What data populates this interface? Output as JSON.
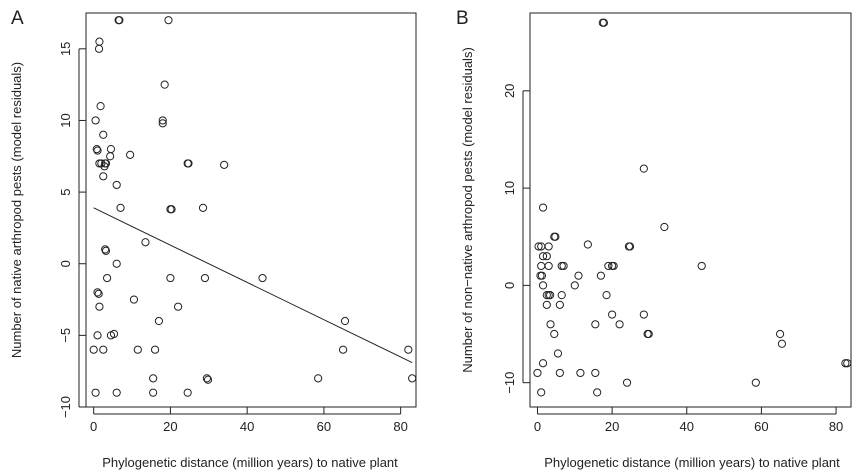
{
  "chart_data": [
    {
      "type": "scatter",
      "panel_label": "A",
      "xlabel": "Phylogenetic distance (million years) to native plant",
      "ylabel": "Number of native arthropod pests (model residuals)",
      "xlim": [
        -2,
        84
      ],
      "ylim": [
        -10,
        17.5
      ],
      "xticks": [
        0,
        20,
        40,
        60,
        80
      ],
      "yticks": [
        -10,
        -5,
        0,
        5,
        10,
        15
      ],
      "grid": false,
      "point_style": "open circle",
      "points": [
        [
          6.5,
          17
        ],
        [
          6.7,
          17
        ],
        [
          19.5,
          17
        ],
        [
          1.5,
          15.5
        ],
        [
          1.4,
          15
        ],
        [
          18.5,
          12.5
        ],
        [
          0.5,
          10
        ],
        [
          18,
          10
        ],
        [
          18,
          9.8
        ],
        [
          1.8,
          11
        ],
        [
          0.8,
          8
        ],
        [
          1,
          7.9
        ],
        [
          2.5,
          9
        ],
        [
          4.5,
          8
        ],
        [
          4.3,
          7.5
        ],
        [
          9.5,
          7.6
        ],
        [
          1.5,
          7
        ],
        [
          2,
          7
        ],
        [
          3,
          7
        ],
        [
          3.2,
          7
        ],
        [
          2.8,
          6.8
        ],
        [
          24.5,
          7
        ],
        [
          24.7,
          7
        ],
        [
          34,
          6.9
        ],
        [
          2.5,
          6.1
        ],
        [
          6,
          5.5
        ],
        [
          7,
          3.9
        ],
        [
          20,
          3.8
        ],
        [
          20.3,
          3.8
        ],
        [
          28.5,
          3.9
        ],
        [
          13.5,
          1.5
        ],
        [
          3,
          1
        ],
        [
          3.2,
          0.9
        ],
        [
          6,
          0
        ],
        [
          3.5,
          -1
        ],
        [
          20,
          -1
        ],
        [
          29,
          -1
        ],
        [
          44,
          -1
        ],
        [
          1,
          -2
        ],
        [
          1.3,
          -2.1
        ],
        [
          10.5,
          -2.5
        ],
        [
          22,
          -3
        ],
        [
          1.5,
          -3
        ],
        [
          1,
          -5
        ],
        [
          4.5,
          -5
        ],
        [
          5.3,
          -4.9
        ],
        [
          17,
          -4
        ],
        [
          65.5,
          -4
        ],
        [
          0,
          -6
        ],
        [
          2.5,
          -6
        ],
        [
          11.5,
          -6
        ],
        [
          16,
          -6
        ],
        [
          65,
          -6
        ],
        [
          82,
          -6
        ],
        [
          15.5,
          -8
        ],
        [
          29.5,
          -8
        ],
        [
          29.8,
          -8.1
        ],
        [
          58.5,
          -8
        ],
        [
          83,
          -8
        ],
        [
          0.5,
          -9
        ],
        [
          6,
          -9
        ],
        [
          15.5,
          -9
        ],
        [
          24.5,
          -9
        ]
      ],
      "fit_line": {
        "x": [
          0,
          83
        ],
        "y": [
          3.9,
          -6.9
        ]
      }
    },
    {
      "type": "scatter",
      "panel_label": "B",
      "xlabel": "Phylogenetic distance (million years) to native plant",
      "ylabel": "Number of non−native arthropod pests (model residuals)",
      "xlim": [
        -2,
        84
      ],
      "ylim": [
        -12.5,
        28
      ],
      "xticks": [
        0,
        20,
        40,
        60,
        80
      ],
      "yticks": [
        -10,
        0,
        10,
        20
      ],
      "grid": false,
      "point_style": "open circle",
      "points": [
        [
          17.5,
          27
        ],
        [
          17.8,
          27
        ],
        [
          28.5,
          12
        ],
        [
          1.5,
          8
        ],
        [
          34,
          6
        ],
        [
          4.5,
          5
        ],
        [
          4.8,
          5
        ],
        [
          0.3,
          4
        ],
        [
          1,
          4
        ],
        [
          3,
          4
        ],
        [
          13.5,
          4.2
        ],
        [
          24.5,
          4
        ],
        [
          24.8,
          4
        ],
        [
          1.5,
          3
        ],
        [
          2.5,
          3
        ],
        [
          1,
          2
        ],
        [
          3,
          2
        ],
        [
          6.5,
          2
        ],
        [
          7,
          2
        ],
        [
          19,
          2
        ],
        [
          20,
          2
        ],
        [
          20.4,
          2
        ],
        [
          44,
          2
        ],
        [
          0.8,
          1
        ],
        [
          1.2,
          1
        ],
        [
          11,
          1
        ],
        [
          17,
          1
        ],
        [
          1.5,
          0
        ],
        [
          10,
          0
        ],
        [
          28.5,
          -3
        ],
        [
          2.5,
          -1
        ],
        [
          3,
          -1
        ],
        [
          3.4,
          -1
        ],
        [
          6.5,
          -1
        ],
        [
          18.5,
          -1
        ],
        [
          2.5,
          -2
        ],
        [
          6,
          -2
        ],
        [
          4.5,
          -5
        ],
        [
          3.5,
          -4
        ],
        [
          15.5,
          -4
        ],
        [
          22,
          -4
        ],
        [
          29.5,
          -5
        ],
        [
          29.8,
          -5
        ],
        [
          65,
          -5
        ],
        [
          65.5,
          -6
        ],
        [
          1.5,
          -8
        ],
        [
          5.5,
          -7
        ],
        [
          20,
          -3
        ],
        [
          82.5,
          -8
        ],
        [
          83,
          -8
        ],
        [
          0,
          -9
        ],
        [
          6,
          -9
        ],
        [
          11.5,
          -9
        ],
        [
          15.5,
          -9
        ],
        [
          24,
          -10
        ],
        [
          58.5,
          -10
        ],
        [
          1,
          -11
        ],
        [
          16,
          -11
        ]
      ]
    }
  ]
}
